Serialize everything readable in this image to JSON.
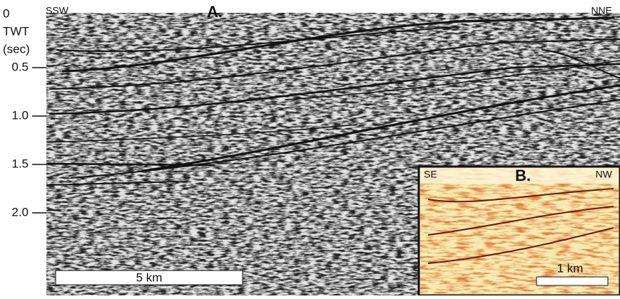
{
  "panel_a": {
    "label": "A.",
    "left_direction": "SSW",
    "right_direction": "NNE",
    "scale_bar": "5 km",
    "axis": {
      "zero": "0",
      "title_line1": "TWT",
      "title_line2": "(sec)",
      "ticks": [
        "0.5",
        "1.0",
        "1.5",
        "2.0"
      ]
    }
  },
  "panel_b": {
    "label": "B.",
    "left_direction": "SE",
    "right_direction": "NW",
    "scale_bar": "1 km"
  }
}
